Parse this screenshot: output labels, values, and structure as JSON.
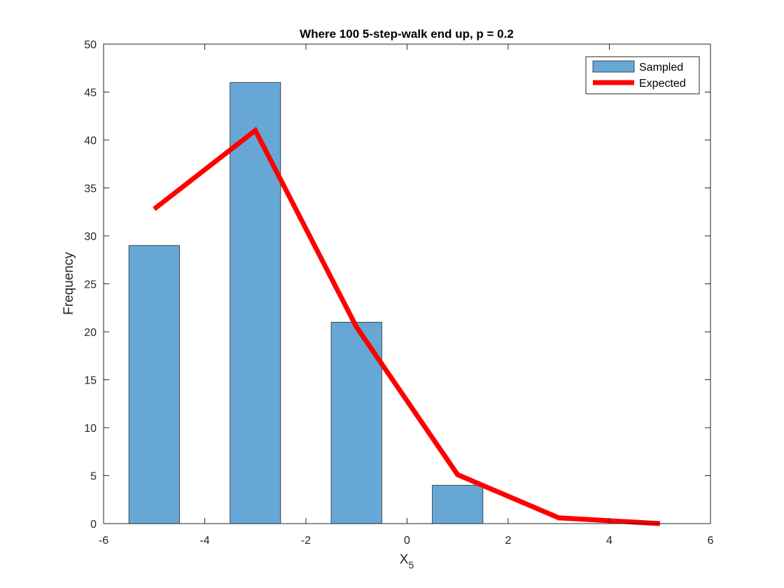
{
  "chart_data": {
    "type": "bar",
    "title": "Where 100 5-step-walk end up, p = 0.2",
    "xlabel": "X",
    "xlabel_subscript": "5",
    "ylabel": "Frequency",
    "xlim": [
      -6,
      6
    ],
    "ylim": [
      0,
      50
    ],
    "xticks": [
      -6,
      -4,
      -2,
      0,
      2,
      4,
      6
    ],
    "yticks": [
      0,
      5,
      10,
      15,
      20,
      25,
      30,
      35,
      40,
      45,
      50
    ],
    "grid": false,
    "legend": "top-right",
    "bar_width": 1,
    "series": [
      {
        "name": "Sampled",
        "kind": "bar",
        "color": "#67a7d6",
        "x": [
          -5,
          -3,
          -1,
          1
        ],
        "values": [
          29,
          46,
          21,
          4
        ]
      },
      {
        "name": "Expected",
        "kind": "line",
        "color": "#ff0000",
        "x": [
          -5,
          -3,
          -1,
          1,
          3,
          5
        ],
        "values": [
          32.8,
          41.0,
          20.5,
          5.1,
          0.6,
          0.0
        ]
      }
    ]
  }
}
